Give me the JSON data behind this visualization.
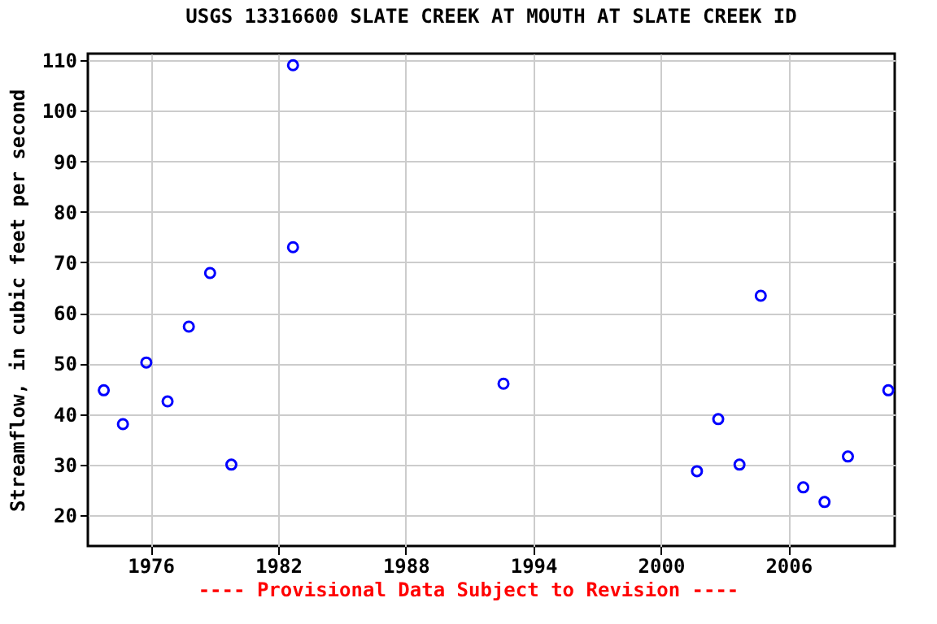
{
  "chart_data": {
    "type": "scatter",
    "title": "USGS 13316600 SLATE CREEK AT MOUTH AT SLATE CREEK ID",
    "ylabel": "Streamflow, in cubic feet per second",
    "annotations": [
      "---- Provisional Data Subject to Revision ----"
    ],
    "x": [
      1973.8,
      1974.7,
      1975.8,
      1976.8,
      1977.8,
      1978.8,
      1979.8,
      1982.7,
      1982.7,
      1992.6,
      2001.7,
      2002.7,
      2003.7,
      2004.7,
      2006.7,
      2007.7,
      2008.8,
      2010.7
    ],
    "series": [
      {
        "color": "#0000ff",
        "values": [
          44.7,
          38,
          50.2,
          42.5,
          57.3,
          67.9,
          30,
          109,
          73,
          46,
          28.7,
          39,
          30,
          63.4,
          25.5,
          22.6,
          31.6,
          44.7
        ]
      }
    ],
    "xlim": [
      1973.05,
      2011
    ],
    "ylim": [
      13.9,
      111.3
    ],
    "xticks": [
      1976,
      1982,
      1988,
      1994,
      2000,
      2006
    ],
    "yticks": [
      20,
      30,
      40,
      50,
      60,
      70,
      80,
      90,
      100,
      110
    ],
    "grid": true,
    "marker": "circle"
  }
}
